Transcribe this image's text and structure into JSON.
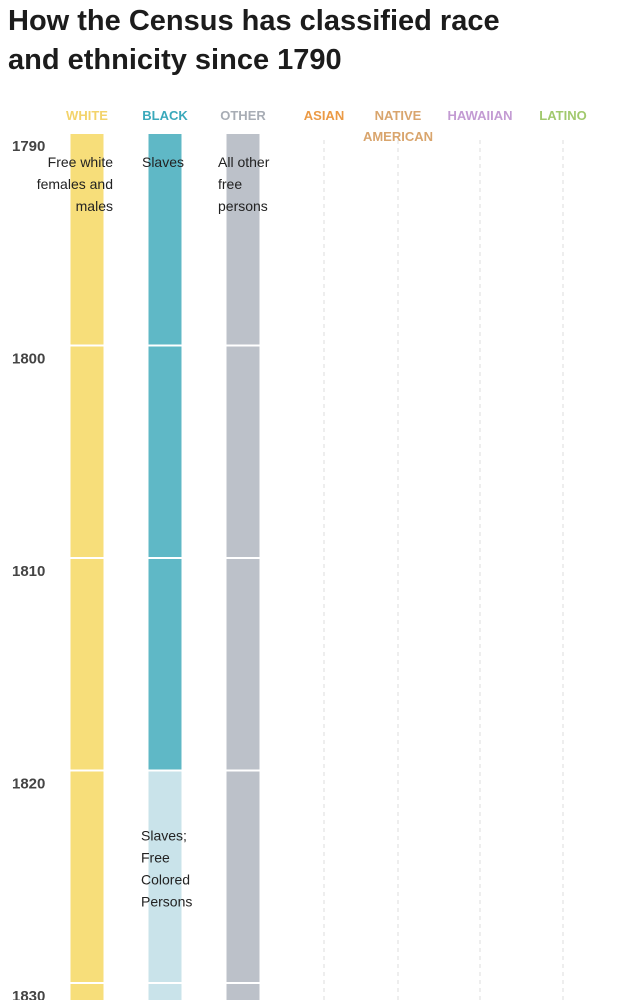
{
  "page": {
    "title_lines": [
      "How the Census has classified race",
      "and ethnicity since 1790"
    ]
  },
  "chart_data": {
    "type": "timeline",
    "columns": [
      {
        "key": "white",
        "header": [
          "WHITE"
        ],
        "color": "#f7de7a",
        "header_color": "#f3d36b"
      },
      {
        "key": "black",
        "header": [
          "BLACK"
        ],
        "color": "#5fb8c6",
        "header_color": "#3aa9bb"
      },
      {
        "key": "other",
        "header": [
          "OTHER"
        ],
        "color": "#bcc1c9",
        "header_color": "#a8adb5"
      },
      {
        "key": "asian",
        "header": [
          "ASIAN"
        ],
        "color": "#f0a95e",
        "header_color": "#eb9a45"
      },
      {
        "key": "native_american",
        "header": [
          "NATIVE",
          "AMERICAN"
        ],
        "color": "#e3b07a",
        "header_color": "#d9a56d"
      },
      {
        "key": "hawaiian",
        "header": [
          "HAWAIIAN"
        ],
        "color": "#c9a6d8",
        "header_color": "#c39bd3"
      },
      {
        "key": "latino",
        "header": [
          "LATINO"
        ],
        "color": "#a9cf7d",
        "header_color": "#a1c96d"
      }
    ],
    "years": [
      1790,
      1800,
      1810,
      1820,
      1830
    ],
    "year_range": [
      1790,
      1830
    ],
    "bars": [
      {
        "column": "white",
        "start": 1790,
        "end": 1830,
        "color": "#f7de7a"
      },
      {
        "column": "black",
        "start": 1790,
        "end": 1820,
        "color": "#5fb8c6"
      },
      {
        "column": "black",
        "start": 1820,
        "end": 1830,
        "color": "#c9e3ea"
      },
      {
        "column": "other",
        "start": 1790,
        "end": 1830,
        "color": "#bcc1c9"
      }
    ],
    "annotations": [
      {
        "column": "white",
        "year": 1791.6,
        "align": "end",
        "lines": [
          "Free white",
          "females and",
          "males"
        ]
      },
      {
        "column": "black",
        "year": 1791.6,
        "align": "middle",
        "lines": [
          "Slaves"
        ]
      },
      {
        "column": "other",
        "year": 1791.6,
        "align": "start",
        "lines": [
          "All other",
          "free",
          "persons"
        ]
      },
      {
        "column": "black",
        "year": 1823.3,
        "align": "start",
        "lines": [
          "Slaves;",
          "Free",
          "Colored",
          "Persons"
        ]
      }
    ]
  }
}
